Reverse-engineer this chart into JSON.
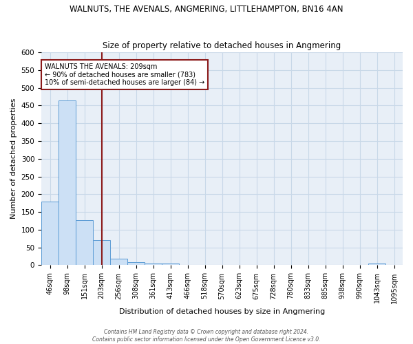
{
  "title": "WALNUTS, THE AVENALS, ANGMERING, LITTLEHAMPTON, BN16 4AN",
  "subtitle": "Size of property relative to detached houses in Angmering",
  "xlabel": "Distribution of detached houses by size in Angmering",
  "ylabel": "Number of detached properties",
  "bar_values": [
    180,
    465,
    127,
    70,
    18,
    8,
    5,
    5,
    0,
    0,
    0,
    0,
    0,
    0,
    0,
    0,
    0,
    0,
    0,
    5,
    0
  ],
  "x_labels": [
    "46sqm",
    "98sqm",
    "151sqm",
    "203sqm",
    "256sqm",
    "308sqm",
    "361sqm",
    "413sqm",
    "466sqm",
    "518sqm",
    "570sqm",
    "623sqm",
    "675sqm",
    "728sqm",
    "780sqm",
    "833sqm",
    "885sqm",
    "938sqm",
    "990sqm",
    "1043sqm",
    "1095sqm"
  ],
  "bar_color": "#cce0f5",
  "bar_edge_color": "#5b9bd5",
  "vline_index": 3.5,
  "vline_color": "#8b1a1a",
  "annotation_line1": "WALNUTS THE AVENALS: 209sqm",
  "annotation_line2": "← 90% of detached houses are smaller (783)",
  "annotation_line3": "10% of semi-detached houses are larger (84) →",
  "annotation_box_color": "white",
  "annotation_box_edgecolor": "#8b1a1a",
  "ylim": [
    0,
    600
  ],
  "yticks": [
    0,
    50,
    100,
    150,
    200,
    250,
    300,
    350,
    400,
    450,
    500,
    550,
    600
  ],
  "background_color": "#e8eff7",
  "grid_color": "#c8d8e8",
  "footer_line1": "Contains HM Land Registry data © Crown copyright and database right 2024.",
  "footer_line2": "Contains public sector information licensed under the Open Government Licence v3.0.",
  "title_fontsize": 8.5,
  "subtitle_fontsize": 8.5
}
